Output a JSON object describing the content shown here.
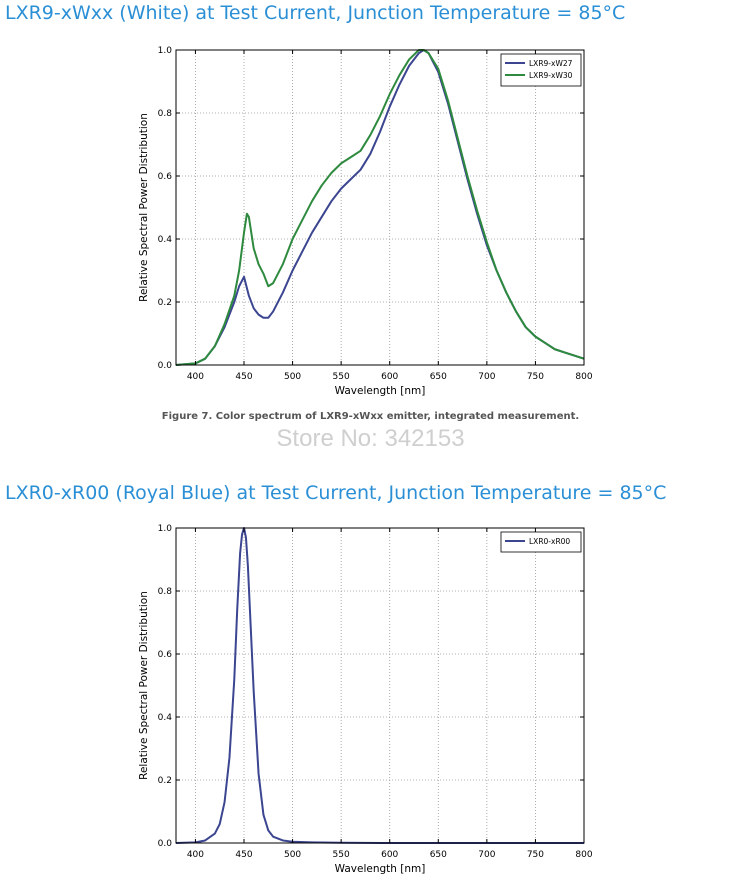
{
  "headings": {
    "white": "LXR9-xWxx (White) at Test Current, Junction Temperature = 85°C",
    "blue": "LXR0-xR00 (Royal Blue) at Test Current, Junction Temperature = 85°C"
  },
  "caption": "Figure 7.  Color spectrum of LXR9-xWxx emitter, integrated measurement.",
  "watermark": "Store No: 342153",
  "chart_data": [
    {
      "type": "line",
      "xlabel": "Wavelength [nm]",
      "ylabel": "Relative Spectral Power Distribution",
      "xlim": [
        380,
        800
      ],
      "ylim": [
        0,
        1
      ],
      "xticks": [
        400,
        450,
        500,
        550,
        600,
        650,
        700,
        750,
        800
      ],
      "yticks": [
        0.0,
        0.2,
        0.4,
        0.6,
        0.8,
        1.0
      ],
      "grid": true,
      "legend": "top-right",
      "series": [
        {
          "name": "LXR9-xW27",
          "color": "#3b4590",
          "x": [
            380,
            400,
            410,
            420,
            430,
            440,
            445,
            450,
            455,
            460,
            465,
            470,
            475,
            480,
            490,
            500,
            510,
            520,
            530,
            540,
            550,
            560,
            570,
            580,
            590,
            600,
            610,
            620,
            630,
            635,
            640,
            650,
            660,
            670,
            680,
            690,
            700,
            710,
            720,
            730,
            740,
            750,
            760,
            770,
            780,
            790,
            800
          ],
          "y": [
            0.0,
            0.005,
            0.02,
            0.06,
            0.12,
            0.2,
            0.25,
            0.28,
            0.22,
            0.18,
            0.16,
            0.15,
            0.15,
            0.17,
            0.23,
            0.3,
            0.36,
            0.42,
            0.47,
            0.52,
            0.56,
            0.59,
            0.62,
            0.67,
            0.74,
            0.82,
            0.89,
            0.95,
            0.99,
            1.0,
            0.99,
            0.93,
            0.83,
            0.71,
            0.59,
            0.48,
            0.38,
            0.3,
            0.23,
            0.17,
            0.12,
            0.09,
            0.07,
            0.05,
            0.04,
            0.03,
            0.02
          ]
        },
        {
          "name": "LXR9-xW30",
          "color": "#2e8a3e",
          "x": [
            380,
            400,
            410,
            420,
            430,
            440,
            445,
            450,
            453,
            455,
            460,
            465,
            470,
            475,
            480,
            490,
            500,
            510,
            520,
            530,
            540,
            550,
            560,
            570,
            580,
            590,
            600,
            610,
            620,
            630,
            635,
            640,
            650,
            660,
            670,
            680,
            690,
            700,
            710,
            720,
            730,
            740,
            750,
            760,
            770,
            780,
            790,
            800
          ],
          "y": [
            0.0,
            0.005,
            0.02,
            0.06,
            0.13,
            0.22,
            0.3,
            0.42,
            0.48,
            0.47,
            0.37,
            0.32,
            0.29,
            0.25,
            0.26,
            0.32,
            0.4,
            0.46,
            0.52,
            0.57,
            0.61,
            0.64,
            0.66,
            0.68,
            0.73,
            0.79,
            0.86,
            0.92,
            0.97,
            1.0,
            1.0,
            0.99,
            0.94,
            0.84,
            0.72,
            0.6,
            0.49,
            0.39,
            0.3,
            0.23,
            0.17,
            0.12,
            0.09,
            0.07,
            0.05,
            0.04,
            0.03,
            0.02
          ]
        }
      ]
    },
    {
      "type": "line",
      "xlabel": "Wavelength [nm]",
      "ylabel": "Relative Spectral Power Distribution",
      "xlim": [
        380,
        800
      ],
      "ylim": [
        0,
        1
      ],
      "xticks": [
        400,
        450,
        500,
        550,
        600,
        650,
        700,
        750,
        800
      ],
      "yticks": [
        0.0,
        0.2,
        0.4,
        0.6,
        0.8,
        1.0
      ],
      "grid": true,
      "legend": "top-right",
      "series": [
        {
          "name": "LXR0-xR00",
          "color": "#3b4590",
          "x": [
            380,
            400,
            410,
            420,
            425,
            430,
            435,
            440,
            443,
            446,
            448,
            450,
            452,
            454,
            457,
            460,
            465,
            470,
            475,
            480,
            490,
            500,
            520,
            550,
            600,
            650,
            700,
            750,
            800
          ],
          "y": [
            0.0,
            0.002,
            0.008,
            0.03,
            0.06,
            0.13,
            0.27,
            0.52,
            0.74,
            0.92,
            0.98,
            1.0,
            0.97,
            0.88,
            0.68,
            0.48,
            0.22,
            0.09,
            0.04,
            0.02,
            0.008,
            0.004,
            0.002,
            0.001,
            0.0,
            0.0,
            0.0,
            0.0,
            0.0
          ]
        }
      ]
    }
  ]
}
